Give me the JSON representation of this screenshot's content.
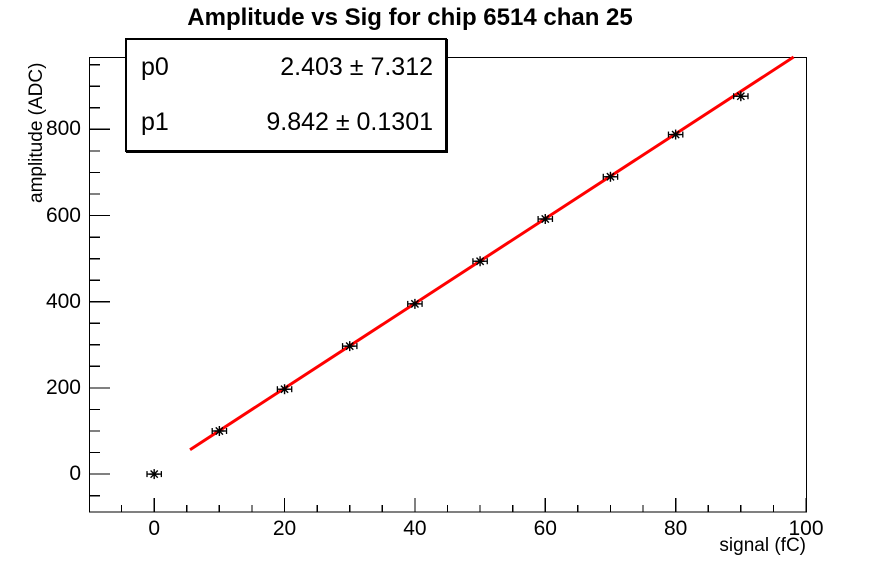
{
  "title": "Amplitude vs Sig for chip 6514 chan 25",
  "stats_box": {
    "rows": [
      {
        "name": "p0",
        "value": "2.403 ± 7.312"
      },
      {
        "name": "p1",
        "value": "9.842 ± 0.1301"
      }
    ]
  },
  "chart_data": {
    "type": "scatter",
    "title": "Amplitude vs Sig for chip 6514 chan 25",
    "xlabel": "signal (fC)",
    "ylabel": "amplitude (ADC)",
    "xlim": [
      -10,
      100
    ],
    "ylim": [
      -88,
      968
    ],
    "xticks": [
      0,
      20,
      40,
      60,
      80,
      100
    ],
    "yticks": [
      0,
      200,
      400,
      600,
      800
    ],
    "x_minor_step": 5,
    "y_minor_step": 50,
    "grid": "off",
    "legend": "none",
    "points": {
      "x": [
        0,
        10,
        20,
        30,
        40,
        50,
        60,
        70,
        80,
        90
      ],
      "y": [
        0,
        100,
        197,
        297,
        395,
        494,
        592,
        690,
        788,
        877
      ],
      "xerr": 1.1,
      "marker": "asterisk-with-x-error-bars"
    },
    "fit": {
      "label_p0": "p0",
      "p0": 2.403,
      "p0_err": 7.312,
      "label_p1": "p1",
      "p1": 9.842,
      "p1_err": 0.1301,
      "x_start": 5.5,
      "x_end": 98.1
    },
    "colors": {
      "axis": "#000000",
      "marker": "#000000",
      "fit_line": "#ff0000",
      "background": "#ffffff"
    }
  }
}
